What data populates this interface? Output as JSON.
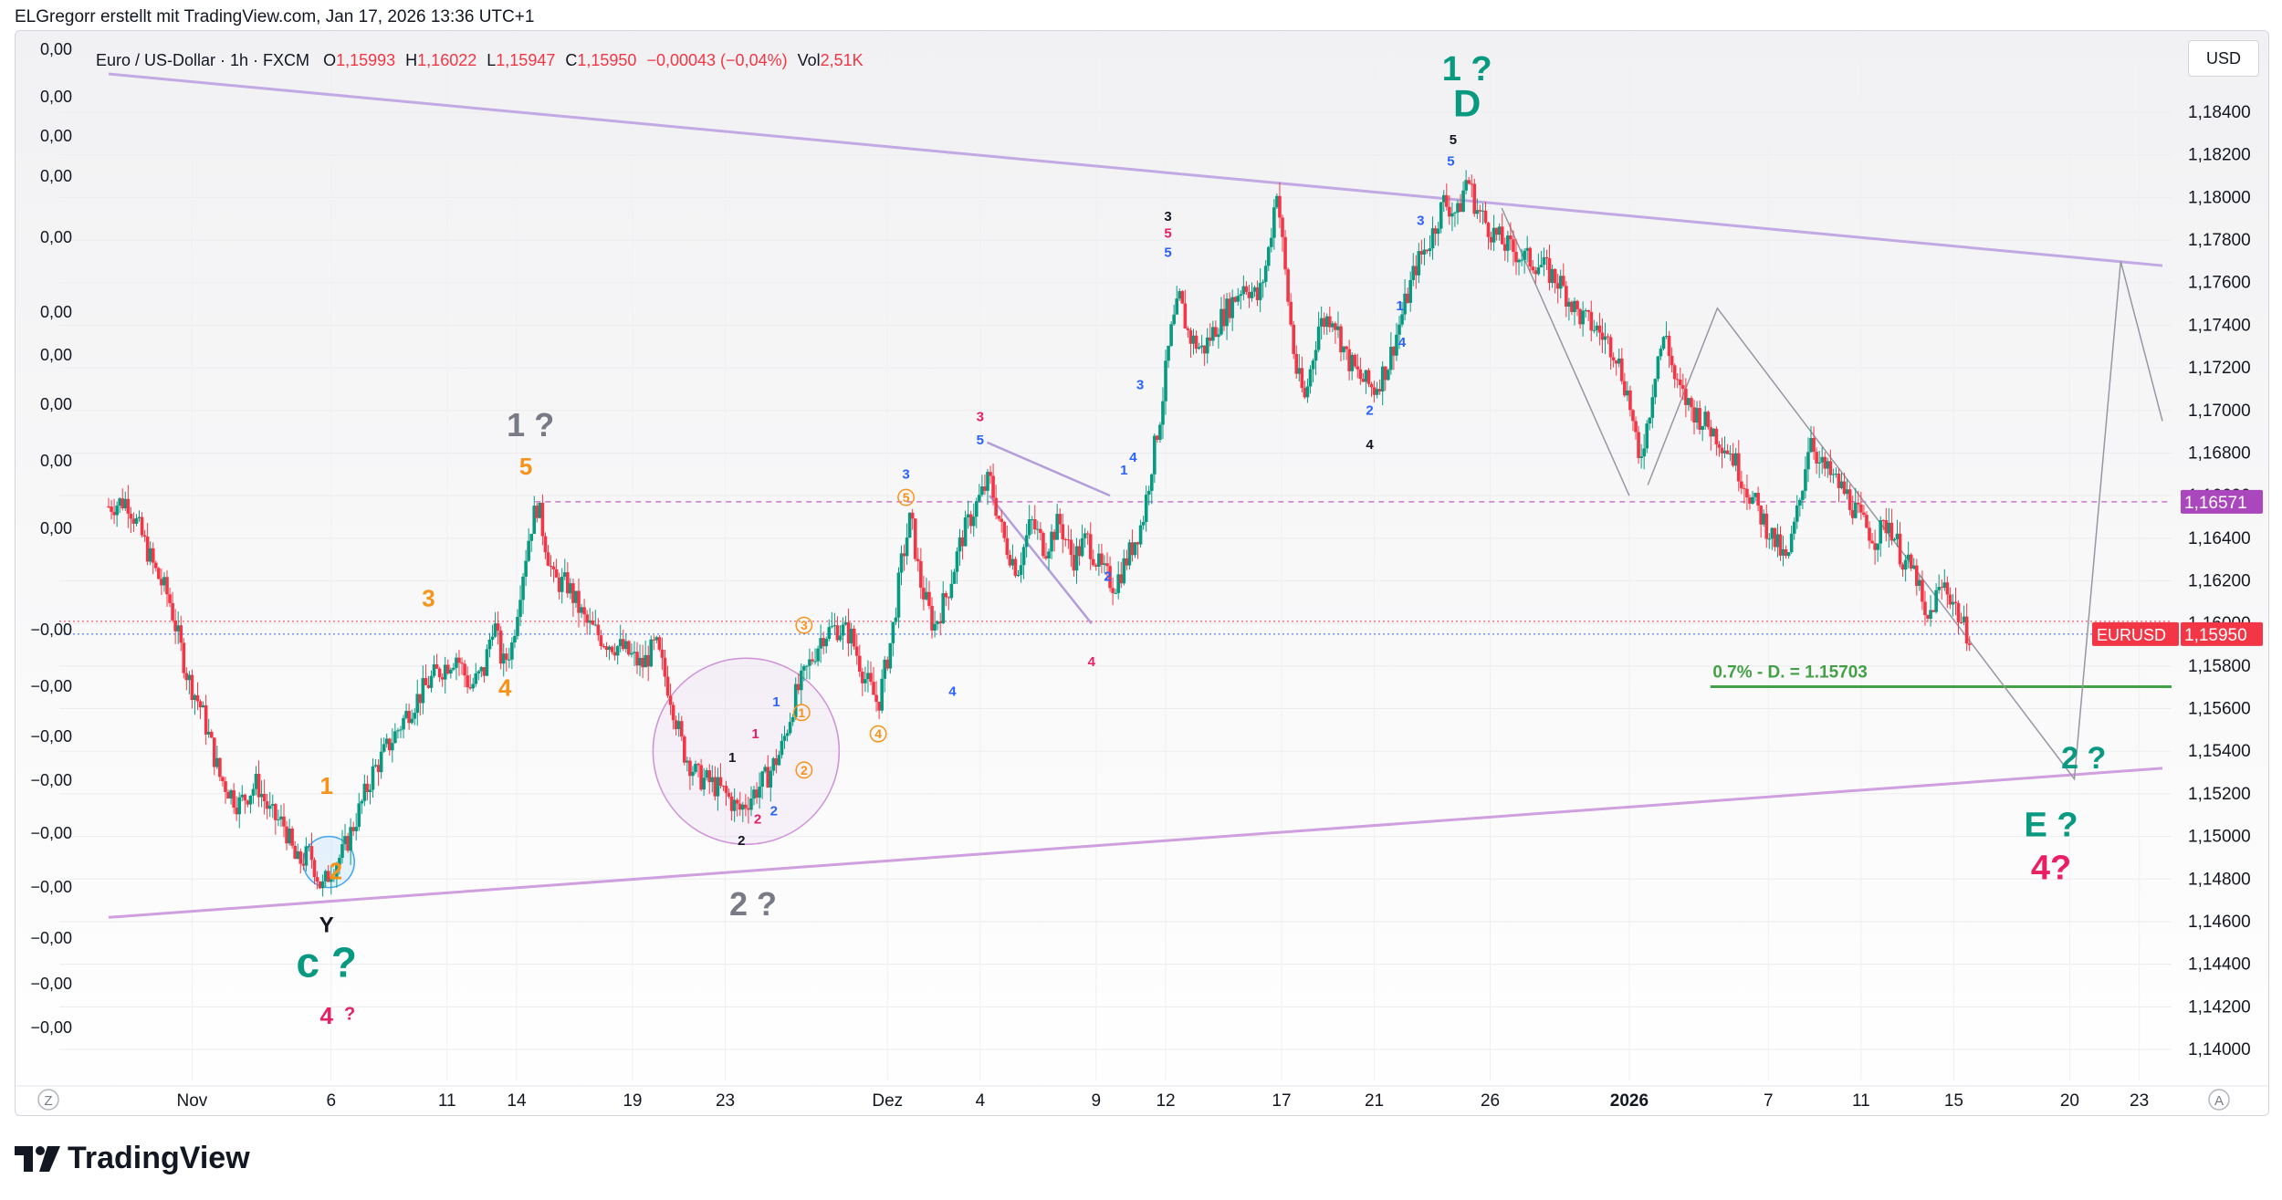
{
  "header": "ELGregorr erstellt mit TradingView.com, Jan 17, 2026 13:36 UTC+1",
  "legend": {
    "symbol": "Euro / US-Dollar · 1h · FXCM",
    "o_label": "O",
    "o": "1,15993",
    "h_label": "H",
    "h": "1,16022",
    "l_label": "L",
    "l": "1,15947",
    "c_label": "C",
    "c": "1,15950",
    "change": "−0,00043 (−0,04%)",
    "vol_label": "Vol",
    "vol": "2,51K"
  },
  "currency_button": "USD",
  "brand": "TradingView",
  "colors": {
    "up": "#089981",
    "down": "#f23645",
    "channel_top": "#c2a9e3",
    "channel_bottom": "#cf9fdf",
    "level_line": "#cc77cc",
    "teal": "#089981",
    "orange": "#f7931a",
    "blue": "#2962ff",
    "pink": "#e91e63",
    "gray": "#787b86",
    "target_line": "#43a047"
  },
  "chart_data": {
    "type": "candlestick",
    "symbol": "EURUSD",
    "timeframe": "1h",
    "source": "FXCM",
    "currency": "USD",
    "ylim": [
      1.1394,
      1.1861
    ],
    "y_ticks": [
      "1,14000",
      "1,14200",
      "1,14400",
      "1,14600",
      "1,14800",
      "1,15000",
      "1,15200",
      "1,15400",
      "1,15600",
      "1,15800",
      "1,16000",
      "1,16200",
      "1,16400",
      "1,16600",
      "1,16800",
      "1,17000",
      "1,17200",
      "1,17400",
      "1,17600",
      "1,17800",
      "1,18000",
      "1,18200",
      "1,18400"
    ],
    "y_tick_values": [
      1.14,
      1.142,
      1.144,
      1.146,
      1.148,
      1.15,
      1.152,
      1.154,
      1.156,
      1.158,
      1.16,
      1.162,
      1.164,
      1.166,
      1.168,
      1.17,
      1.172,
      1.174,
      1.176,
      1.178,
      1.18,
      1.182,
      1.184
    ],
    "x_ticks": [
      {
        "label": "Nov",
        "day": -1,
        "bold": false
      },
      {
        "label": "6",
        "day": 5,
        "bold": false
      },
      {
        "label": "11",
        "day": 10,
        "bold": false
      },
      {
        "label": "14",
        "day": 13,
        "bold": false
      },
      {
        "label": "19",
        "day": 18,
        "bold": false
      },
      {
        "label": "23",
        "day": 22,
        "bold": false
      },
      {
        "label": "Dez",
        "day": 29,
        "bold": false
      },
      {
        "label": "4",
        "day": 33,
        "bold": false
      },
      {
        "label": "9",
        "day": 38,
        "bold": false
      },
      {
        "label": "12",
        "day": 41,
        "bold": false
      },
      {
        "label": "17",
        "day": 46,
        "bold": false
      },
      {
        "label": "21",
        "day": 50,
        "bold": false
      },
      {
        "label": "26",
        "day": 55,
        "bold": false
      },
      {
        "label": "2026",
        "day": 61,
        "bold": true
      },
      {
        "label": "7",
        "day": 67,
        "bold": false
      },
      {
        "label": "11",
        "day": 71,
        "bold": false
      },
      {
        "label": "15",
        "day": 75,
        "bold": false
      },
      {
        "label": "20",
        "day": 80,
        "bold": false
      },
      {
        "label": "23",
        "day": 83,
        "bold": false
      }
    ],
    "x_axis_corner_left": "Z",
    "x_axis_corner_right": "A",
    "left_axis_labels": [
      "0,00",
      "0,00",
      "0,00",
      "0,00",
      "0,00",
      "0,00",
      "0,00",
      "0,00",
      "0,00",
      "0,00",
      "−0,00",
      "−0,00",
      "−0,00",
      "−0,00",
      "−0,00",
      "−0,00",
      "−0,00",
      "−0,00",
      "−0,00"
    ],
    "price_path": [
      [
        -4.6,
        1.1655
      ],
      [
        -3.8,
        1.1658
      ],
      [
        -3.2,
        1.1642
      ],
      [
        -2.6,
        1.1625
      ],
      [
        -2.0,
        1.1612
      ],
      [
        -1.2,
        1.1575
      ],
      [
        -0.6,
        1.156
      ],
      [
        0.2,
        1.1528
      ],
      [
        1.0,
        1.1515
      ],
      [
        1.8,
        1.1525
      ],
      [
        2.4,
        1.151
      ],
      [
        3.0,
        1.1505
      ],
      [
        3.5,
        1.1487
      ],
      [
        4.1,
        1.1492
      ],
      [
        4.6,
        1.1475
      ],
      [
        5.0,
        1.1485
      ],
      [
        5.5,
        1.1492
      ],
      [
        6.2,
        1.1512
      ],
      [
        6.8,
        1.153
      ],
      [
        7.6,
        1.1545
      ],
      [
        8.4,
        1.156
      ],
      [
        9.4,
        1.1575
      ],
      [
        10.4,
        1.1585
      ],
      [
        11.0,
        1.157
      ],
      [
        11.6,
        1.1578
      ],
      [
        12.0,
        1.1602
      ],
      [
        12.4,
        1.158
      ],
      [
        12.8,
        1.159
      ],
      [
        13.2,
        1.162
      ],
      [
        13.6,
        1.1645
      ],
      [
        13.9,
        1.1656
      ],
      [
        14.2,
        1.164
      ],
      [
        14.6,
        1.162
      ],
      [
        15.2,
        1.1618
      ],
      [
        16.0,
        1.16
      ],
      [
        16.8,
        1.1592
      ],
      [
        17.6,
        1.1588
      ],
      [
        18.4,
        1.158
      ],
      [
        19.0,
        1.159
      ],
      [
        19.6,
        1.1568
      ],
      [
        20.2,
        1.154
      ],
      [
        20.8,
        1.1528
      ],
      [
        21.4,
        1.1525
      ],
      [
        22.0,
        1.152
      ],
      [
        22.6,
        1.1512
      ],
      [
        23.2,
        1.152
      ],
      [
        23.8,
        1.1528
      ],
      [
        24.4,
        1.154
      ],
      [
        25.0,
        1.1565
      ],
      [
        25.6,
        1.158
      ],
      [
        26.2,
        1.1595
      ],
      [
        26.8,
        1.1598
      ],
      [
        27.4,
        1.1595
      ],
      [
        28.0,
        1.1575
      ],
      [
        28.6,
        1.1562
      ],
      [
        29.2,
        1.1595
      ],
      [
        29.6,
        1.1628
      ],
      [
        30.0,
        1.165
      ],
      [
        30.4,
        1.162
      ],
      [
        31.0,
        1.1598
      ],
      [
        31.6,
        1.1615
      ],
      [
        32.2,
        1.164
      ],
      [
        32.8,
        1.1655
      ],
      [
        33.4,
        1.1668
      ],
      [
        34.0,
        1.164
      ],
      [
        34.6,
        1.1625
      ],
      [
        35.2,
        1.1648
      ],
      [
        35.8,
        1.1635
      ],
      [
        36.4,
        1.1648
      ],
      [
        37.0,
        1.163
      ],
      [
        37.6,
        1.164
      ],
      [
        38.2,
        1.1625
      ],
      [
        38.8,
        1.1618
      ],
      [
        39.4,
        1.1632
      ],
      [
        40.0,
        1.1648
      ],
      [
        40.4,
        1.1675
      ],
      [
        40.8,
        1.17
      ],
      [
        41.2,
        1.1735
      ],
      [
        41.6,
        1.1752
      ],
      [
        42.0,
        1.1735
      ],
      [
        42.6,
        1.1728
      ],
      [
        43.2,
        1.174
      ],
      [
        43.8,
        1.175
      ],
      [
        44.4,
        1.176
      ],
      [
        45.0,
        1.1752
      ],
      [
        45.4,
        1.1772
      ],
      [
        45.8,
        1.1805
      ],
      [
        46.2,
        1.176
      ],
      [
        46.6,
        1.172
      ],
      [
        47.0,
        1.1705
      ],
      [
        47.6,
        1.174
      ],
      [
        48.2,
        1.1745
      ],
      [
        48.8,
        1.1725
      ],
      [
        49.4,
        1.1715
      ],
      [
        50.0,
        1.171
      ],
      [
        50.6,
        1.1722
      ],
      [
        51.2,
        1.1745
      ],
      [
        51.8,
        1.1768
      ],
      [
        52.4,
        1.178
      ],
      [
        53.0,
        1.1798
      ],
      [
        53.6,
        1.1792
      ],
      [
        54.0,
        1.181
      ],
      [
        54.4,
        1.1795
      ],
      [
        55.0,
        1.1785
      ],
      [
        55.6,
        1.1778
      ],
      [
        56.4,
        1.1772
      ],
      [
        57.2,
        1.1768
      ],
      [
        58.0,
        1.176
      ],
      [
        58.8,
        1.1745
      ],
      [
        59.6,
        1.1738
      ],
      [
        60.4,
        1.1728
      ],
      [
        61.0,
        1.1705
      ],
      [
        61.4,
        1.1675
      ],
      [
        61.8,
        1.1695
      ],
      [
        62.2,
        1.1725
      ],
      [
        62.6,
        1.1735
      ],
      [
        63.0,
        1.1712
      ],
      [
        63.6,
        1.1702
      ],
      [
        64.2,
        1.1695
      ],
      [
        64.8,
        1.1688
      ],
      [
        65.4,
        1.168
      ],
      [
        66.0,
        1.1665
      ],
      [
        66.6,
        1.1652
      ],
      [
        67.2,
        1.164
      ],
      [
        67.8,
        1.1628
      ],
      [
        68.4,
        1.166
      ],
      [
        68.8,
        1.169
      ],
      [
        69.2,
        1.1675
      ],
      [
        69.8,
        1.1668
      ],
      [
        70.4,
        1.166
      ],
      [
        71.0,
        1.1648
      ],
      [
        71.6,
        1.164
      ],
      [
        72.2,
        1.1648
      ],
      [
        72.8,
        1.163
      ],
      [
        73.4,
        1.1622
      ],
      [
        73.8,
        1.1598
      ],
      [
        74.2,
        1.1612
      ],
      [
        74.6,
        1.1618
      ],
      [
        75.0,
        1.161
      ],
      [
        75.4,
        1.1598
      ],
      [
        75.7,
        1.1595
      ]
    ],
    "last_price": 1.1595,
    "last_price_label": "1,15950",
    "last_price_tag": "EURUSD",
    "level_price": 1.16571,
    "level_label": "1,16571",
    "target": {
      "price": 1.15703,
      "text": "0.7% - D.  = 1.15703"
    },
    "channel_upper": [
      [
        -4.6,
        1.1858
      ],
      [
        84.0,
        1.1768
      ]
    ],
    "channel_lower": [
      [
        -4.6,
        1.1462
      ],
      [
        84.0,
        1.1532
      ]
    ],
    "projection_path": [
      [
        80.2,
        1.1527
      ],
      [
        82.2,
        1.167
      ]
    ],
    "wave_labels": [
      {
        "text": "1 ?",
        "day": 54.0,
        "price": 1.1855,
        "color": "teal",
        "size": 38
      },
      {
        "text": "D",
        "day": 54.0,
        "price": 1.1838,
        "color": "teal",
        "size": 42
      },
      {
        "text": "5",
        "day": 53.4,
        "price": 1.1825,
        "color": "black",
        "size": 15
      },
      {
        "text": "5",
        "day": 53.3,
        "price": 1.1815,
        "color": "blue",
        "size": 15
      },
      {
        "text": "3",
        "day": 52.0,
        "price": 1.1787,
        "color": "blue",
        "size": 15
      },
      {
        "text": "1",
        "day": 51.1,
        "price": 1.1747,
        "color": "blue",
        "size": 15
      },
      {
        "text": "4",
        "day": 51.2,
        "price": 1.173,
        "color": "blue",
        "size": 15
      },
      {
        "text": "2",
        "day": 49.8,
        "price": 1.1698,
        "color": "blue",
        "size": 15
      },
      {
        "text": "4",
        "day": 49.8,
        "price": 1.1682,
        "color": "black",
        "size": 15
      },
      {
        "text": "3",
        "day": 41.1,
        "price": 1.1789,
        "color": "black",
        "size": 15
      },
      {
        "text": "5",
        "day": 41.1,
        "price": 1.1781,
        "color": "pink",
        "size": 15
      },
      {
        "text": "5",
        "day": 41.1,
        "price": 1.1772,
        "color": "blue",
        "size": 15
      },
      {
        "text": "3",
        "day": 39.9,
        "price": 1.171,
        "color": "blue",
        "size": 15
      },
      {
        "text": "1",
        "day": 39.2,
        "price": 1.167,
        "color": "blue",
        "size": 15
      },
      {
        "text": "4",
        "day": 39.6,
        "price": 1.1676,
        "color": "blue",
        "size": 15
      },
      {
        "text": "2",
        "day": 38.5,
        "price": 1.162,
        "color": "blue",
        "size": 15
      },
      {
        "text": "3",
        "day": 33.0,
        "price": 1.1695,
        "color": "pink",
        "size": 15
      },
      {
        "text": "5",
        "day": 33.0,
        "price": 1.1684,
        "color": "blue",
        "size": 15
      },
      {
        "text": "4",
        "day": 37.8,
        "price": 1.158,
        "color": "pink",
        "size": 15
      },
      {
        "text": "4",
        "day": 31.8,
        "price": 1.1566,
        "color": "blue",
        "size": 15
      },
      {
        "text": "3",
        "day": 29.8,
        "price": 1.1668,
        "color": "blue",
        "size": 15
      },
      {
        "text": "5",
        "day": 29.8,
        "price": 1.1657,
        "color": "orange",
        "size": 14,
        "circled": true
      },
      {
        "text": "4",
        "day": 28.6,
        "price": 1.1546,
        "color": "orange",
        "size": 14,
        "circled": true
      },
      {
        "text": "3",
        "day": 25.4,
        "price": 1.1597,
        "color": "orange",
        "size": 14,
        "circled": true
      },
      {
        "text": "1",
        "day": 25.3,
        "price": 1.1556,
        "color": "orange",
        "size": 14,
        "circled": true
      },
      {
        "text": "2",
        "day": 25.4,
        "price": 1.1529,
        "color": "orange",
        "size": 14,
        "circled": true
      },
      {
        "text": "1",
        "day": 24.2,
        "price": 1.1561,
        "color": "blue",
        "size": 15
      },
      {
        "text": "1",
        "day": 23.3,
        "price": 1.1546,
        "color": "pink",
        "size": 15
      },
      {
        "text": "1",
        "day": 22.3,
        "price": 1.1535,
        "color": "black",
        "size": 15
      },
      {
        "text": "2",
        "day": 24.1,
        "price": 1.151,
        "color": "blue",
        "size": 15
      },
      {
        "text": "2",
        "day": 23.4,
        "price": 1.1506,
        "color": "pink",
        "size": 15
      },
      {
        "text": "2",
        "day": 22.7,
        "price": 1.1496,
        "color": "black",
        "size": 15
      },
      {
        "text": "2 ?",
        "day": 23.2,
        "price": 1.1463,
        "color": "gray",
        "size": 36
      },
      {
        "text": "1 ?",
        "day": 13.6,
        "price": 1.1688,
        "color": "gray",
        "size": 36
      },
      {
        "text": "5",
        "day": 13.4,
        "price": 1.167,
        "color": "orange",
        "size": 26
      },
      {
        "text": "3",
        "day": 9.2,
        "price": 1.1608,
        "color": "orange",
        "size": 26
      },
      {
        "text": "4",
        "day": 12.5,
        "price": 1.1566,
        "color": "orange",
        "size": 26
      },
      {
        "text": "1",
        "day": 4.8,
        "price": 1.152,
        "color": "orange",
        "size": 26
      },
      {
        "text": "2",
        "day": 5.2,
        "price": 1.148,
        "color": "orange",
        "size": 26
      },
      {
        "text": "Y",
        "day": 4.8,
        "price": 1.1455,
        "color": "black",
        "size": 24
      },
      {
        "text": "c ?",
        "day": 4.8,
        "price": 1.1434,
        "color": "teal",
        "size": 46
      },
      {
        "text": "4",
        "day": 4.8,
        "price": 1.1412,
        "color": "pink",
        "size": 26
      },
      {
        "text": "?",
        "day": 5.8,
        "price": 1.1414,
        "color": "pink",
        "size": 20
      },
      {
        "text": "2 ?",
        "day": 80.6,
        "price": 1.1532,
        "color": "teal",
        "size": 34
      },
      {
        "text": "E ?",
        "day": 79.2,
        "price": 1.15,
        "color": "teal",
        "size": 38
      },
      {
        "text": "4?",
        "day": 79.2,
        "price": 1.148,
        "color": "pink",
        "size": 38
      }
    ]
  }
}
